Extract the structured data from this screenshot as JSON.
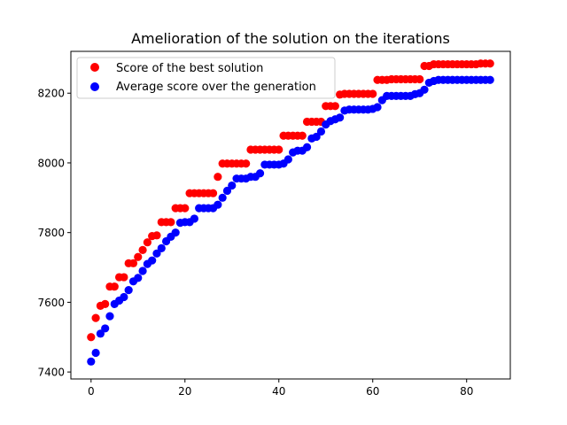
{
  "chart_data": {
    "type": "scatter",
    "title": "Amelioration of the solution on the iterations",
    "xlabel": "",
    "ylabel": "",
    "xlim": [
      -4.3,
      89.3
    ],
    "ylim": [
      7380,
      8320
    ],
    "xticks": [
      0,
      20,
      40,
      60,
      80
    ],
    "yticks": [
      7400,
      7600,
      7800,
      8000,
      8200
    ],
    "grid": false,
    "legend_position": "upper left",
    "series": [
      {
        "name": "Score of the best solution",
        "color": "#ff0000",
        "x": [
          0,
          1,
          2,
          3,
          4,
          5,
          6,
          7,
          8,
          9,
          10,
          11,
          12,
          13,
          14,
          15,
          16,
          17,
          18,
          19,
          20,
          21,
          22,
          23,
          24,
          25,
          26,
          27,
          28,
          29,
          30,
          31,
          32,
          33,
          34,
          35,
          36,
          37,
          38,
          39,
          40,
          41,
          42,
          43,
          44,
          45,
          46,
          47,
          48,
          49,
          50,
          51,
          52,
          53,
          54,
          55,
          56,
          57,
          58,
          59,
          60,
          61,
          62,
          63,
          64,
          65,
          66,
          67,
          68,
          69,
          70,
          71,
          72,
          73,
          74,
          75,
          76,
          77,
          78,
          79,
          80,
          81,
          82,
          83,
          84,
          85
        ],
        "y": [
          7500,
          7555,
          7590,
          7595,
          7645,
          7645,
          7672,
          7672,
          7712,
          7712,
          7730,
          7750,
          7772,
          7790,
          7792,
          7830,
          7830,
          7830,
          7870,
          7870,
          7870,
          7913,
          7913,
          7913,
          7913,
          7913,
          7913,
          7960,
          7998,
          7998,
          7998,
          7998,
          7998,
          7998,
          8038,
          8038,
          8038,
          8038,
          8038,
          8038,
          8038,
          8078,
          8078,
          8078,
          8078,
          8078,
          8118,
          8118,
          8118,
          8118,
          8163,
          8163,
          8163,
          8196,
          8198,
          8198,
          8198,
          8198,
          8198,
          8198,
          8198,
          8238,
          8238,
          8238,
          8240,
          8240,
          8240,
          8240,
          8240,
          8240,
          8240,
          8278,
          8278,
          8283,
          8283,
          8283,
          8283,
          8283,
          8283,
          8283,
          8283,
          8283,
          8283,
          8285,
          8285,
          8285
        ]
      },
      {
        "name": "Average score over the generation",
        "color": "#0000ff",
        "x": [
          0,
          1,
          2,
          3,
          4,
          5,
          6,
          7,
          8,
          9,
          10,
          11,
          12,
          13,
          14,
          15,
          16,
          17,
          18,
          19,
          20,
          21,
          22,
          23,
          24,
          25,
          26,
          27,
          28,
          29,
          30,
          31,
          32,
          33,
          34,
          35,
          36,
          37,
          38,
          39,
          40,
          41,
          42,
          43,
          44,
          45,
          46,
          47,
          48,
          49,
          50,
          51,
          52,
          53,
          54,
          55,
          56,
          57,
          58,
          59,
          60,
          61,
          62,
          63,
          64,
          65,
          66,
          67,
          68,
          69,
          70,
          71,
          72,
          73,
          74,
          75,
          76,
          77,
          78,
          79,
          80,
          81,
          82,
          83,
          84,
          85
        ],
        "y": [
          7430,
          7455,
          7510,
          7525,
          7560,
          7595,
          7605,
          7615,
          7635,
          7660,
          7670,
          7690,
          7710,
          7720,
          7740,
          7755,
          7775,
          7788,
          7800,
          7828,
          7830,
          7830,
          7840,
          7870,
          7870,
          7870,
          7870,
          7880,
          7900,
          7920,
          7935,
          7955,
          7955,
          7955,
          7960,
          7960,
          7970,
          7995,
          7995,
          7995,
          7995,
          7998,
          8010,
          8030,
          8035,
          8035,
          8045,
          8070,
          8075,
          8090,
          8110,
          8120,
          8125,
          8130,
          8150,
          8153,
          8153,
          8153,
          8153,
          8153,
          8155,
          8160,
          8180,
          8192,
          8192,
          8192,
          8192,
          8192,
          8192,
          8197,
          8200,
          8210,
          8230,
          8235,
          8238,
          8238,
          8238,
          8238,
          8238,
          8238,
          8238,
          8238,
          8238,
          8238,
          8238,
          8238
        ]
      }
    ]
  }
}
